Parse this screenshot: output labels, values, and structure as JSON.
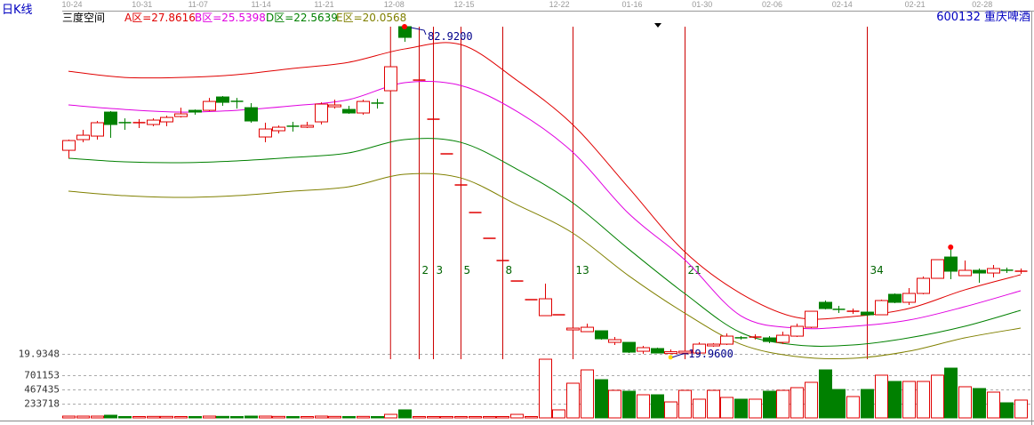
{
  "header": {
    "period_label": "日K线",
    "indicator_name": "三度空间",
    "zone_a": "A区=27.8616",
    "zone_b": "B区=25.5398",
    "zone_d": "D区=22.5639",
    "zone_e": "E区=20.0568",
    "stock": "600132  重庆啤酒"
  },
  "colors": {
    "up": "#e00000",
    "down": "#008000",
    "zone_a": "#e00000",
    "zone_b": "#e000e0",
    "zone_d": "#008000",
    "zone_e": "#808000",
    "fib_line": "#cc0000",
    "label_blue": "#00008b",
    "header_blue": "#0000c0"
  },
  "chart_data": {
    "type": "candlestick",
    "date_ticks": [
      {
        "label": "10-24",
        "index": 0
      },
      {
        "label": "10-31",
        "index": 5
      },
      {
        "label": "11-07",
        "index": 9
      },
      {
        "label": "11-14",
        "index": 13.5
      },
      {
        "label": "11-21",
        "index": 18
      },
      {
        "label": "12-08",
        "index": 23
      },
      {
        "label": "12-15",
        "index": 28
      },
      {
        "label": "12-22",
        "index": 34.8
      },
      {
        "label": "01-16",
        "index": 40
      },
      {
        "label": "01-30",
        "index": 45
      },
      {
        "label": "02-06",
        "index": 50
      },
      {
        "label": "02-14",
        "index": 55
      },
      {
        "label": "02-21",
        "index": 60.2
      },
      {
        "label": "02-28",
        "index": 65
      }
    ],
    "price_axis_label": "19.9348",
    "price_floor": 19.9348,
    "high_marker": {
      "index": 24,
      "label": "82.9200",
      "value": 82.92
    },
    "low_marker": {
      "index": 43,
      "label": "19.9600",
      "value": 19.96
    },
    "ohlc": [
      [
        59.12,
        61.0,
        61.18,
        57.58
      ],
      [
        61.18,
        62.03,
        63.06,
        60.66
      ],
      [
        61.86,
        64.43,
        64.77,
        61.18
      ],
      [
        66.48,
        64.09,
        66.65,
        61.52
      ],
      [
        64.45,
        64.4,
        65.28,
        63.06
      ],
      [
        64.4,
        64.45,
        65.11,
        63.4
      ],
      [
        64.09,
        64.94,
        65.28,
        63.74
      ],
      [
        64.6,
        65.45,
        65.79,
        63.74
      ],
      [
        65.62,
        66.14,
        67.33,
        65.45
      ],
      [
        66.82,
        66.48,
        66.99,
        65.97
      ],
      [
        66.82,
        68.53,
        69.21,
        66.65
      ],
      [
        69.39,
        68.36,
        69.56,
        67.68
      ],
      [
        68.55,
        68.5,
        69.21,
        67.16
      ],
      [
        67.33,
        64.77,
        68.19,
        64.43
      ],
      [
        61.69,
        63.23,
        64.43,
        60.66
      ],
      [
        62.89,
        63.57,
        63.91,
        62.37
      ],
      [
        63.76,
        63.72,
        64.6,
        62.72
      ],
      [
        63.57,
        63.91,
        64.6,
        63.4
      ],
      [
        64.6,
        68.02,
        68.36,
        64.09
      ],
      [
        67.5,
        67.85,
        68.87,
        67.16
      ],
      [
        66.99,
        66.31,
        67.68,
        66.14
      ],
      [
        66.31,
        68.53,
        68.87,
        65.97
      ],
      [
        68.21,
        68.17,
        69.04,
        67.16
      ],
      [
        70.59,
        75.21,
        75.21,
        70.59
      ],
      [
        82.92,
        80.86,
        82.92,
        80.0
      ],
      [
        72.64,
        72.64,
        72.64,
        72.64
      ],
      [
        65.11,
        65.11,
        65.11,
        65.11
      ],
      [
        58.44,
        58.44,
        58.44,
        58.44
      ],
      [
        52.45,
        52.45,
        52.45,
        52.45
      ],
      [
        47.14,
        47.14,
        47.14,
        47.14
      ],
      [
        42.18,
        42.18,
        42.18,
        42.18
      ],
      [
        37.9,
        37.9,
        37.9,
        37.9
      ],
      [
        33.96,
        33.96,
        33.96,
        33.96
      ],
      [
        30.37,
        30.37,
        30.37,
        30.37
      ],
      [
        27.29,
        30.54,
        33.45,
        27.29
      ],
      [
        27.46,
        27.46,
        27.46,
        27.46
      ],
      [
        24.55,
        24.89,
        24.89,
        24.55
      ],
      [
        24.21,
        25.06,
        25.75,
        24.21
      ],
      [
        24.38,
        22.84,
        24.38,
        22.67
      ],
      [
        22.15,
        22.67,
        23.18,
        21.64
      ],
      [
        22.15,
        20.27,
        22.15,
        20.1
      ],
      [
        20.44,
        21.13,
        21.47,
        19.96
      ],
      [
        20.96,
        20.1,
        21.13,
        20.05
      ],
      [
        20.0,
        20.35,
        20.8,
        19.96
      ],
      [
        20.1,
        20.44,
        20.7,
        20.05
      ],
      [
        20.1,
        21.81,
        22.15,
        20.1
      ],
      [
        21.47,
        21.81,
        22.0,
        21.3
      ],
      [
        21.81,
        23.35,
        23.87,
        21.64
      ],
      [
        23.03,
        23.01,
        23.35,
        22.67
      ],
      [
        23.16,
        23.18,
        23.7,
        22.7
      ],
      [
        23.01,
        22.33,
        23.35,
        21.98
      ],
      [
        22.15,
        23.52,
        24.21,
        21.81
      ],
      [
        23.35,
        25.24,
        25.75,
        23.18
      ],
      [
        25.06,
        28.14,
        28.14,
        24.89
      ],
      [
        29.86,
        28.66,
        30.2,
        28.49
      ],
      [
        28.51,
        28.49,
        29.17,
        27.8
      ],
      [
        28.12,
        28.14,
        28.66,
        27.63
      ],
      [
        27.97,
        27.46,
        28.14,
        27.12
      ],
      [
        27.46,
        30.2,
        30.37,
        27.46
      ],
      [
        31.4,
        29.86,
        31.57,
        29.69
      ],
      [
        29.86,
        31.57,
        32.59,
        29.34
      ],
      [
        31.57,
        34.48,
        34.82,
        31.4
      ],
      [
        34.48,
        38.07,
        38.07,
        34.48
      ],
      [
        38.58,
        35.85,
        39.95,
        34.31
      ],
      [
        34.99,
        36.02,
        37.9,
        34.99
      ],
      [
        36.02,
        35.5,
        36.36,
        33.62
      ],
      [
        35.5,
        36.36,
        37.04,
        34.65
      ],
      [
        36.04,
        36.02,
        36.53,
        35.5
      ],
      [
        35.83,
        35.85,
        36.36,
        35.33
      ]
    ],
    "volume_axis_labels": [
      "701153",
      "467435",
      "233718"
    ],
    "volume_axis_values": [
      701153,
      467435,
      233718
    ],
    "volume": [
      30000,
      30000,
      30000,
      45000,
      15000,
      20000,
      25000,
      25000,
      20000,
      20000,
      30000,
      25000,
      15000,
      30000,
      30000,
      25000,
      15000,
      20000,
      30000,
      25000,
      20000,
      25000,
      15000,
      60000,
      136000,
      5000,
      5000,
      5000,
      5000,
      10000,
      10000,
      12000,
      60000,
      15000,
      995000,
      136000,
      588000,
      814000,
      648000,
      467000,
      452000,
      392000,
      392000,
      271000,
      467000,
      317000,
      467000,
      347000,
      317000,
      317000,
      452000,
      467000,
      513000,
      603000,
      814000,
      482000,
      362000,
      482000,
      724000,
      618000,
      618000,
      618000,
      724000,
      844000,
      528000,
      498000,
      437000,
      256000,
      302000
    ],
    "bands": {
      "sample_indices": [
        0,
        4,
        8,
        12,
        16,
        20,
        24,
        28,
        32,
        36,
        40,
        44,
        48,
        52,
        56,
        60,
        64,
        68
      ],
      "A": [
        74.35,
        73.15,
        73.15,
        73.67,
        74.87,
        76.06,
        78.63,
        79.49,
        72.64,
        64.09,
        51.93,
        39.61,
        31.57,
        26.95,
        27.12,
        28.66,
        32.25,
        35.16
      ],
      "B": [
        67.85,
        66.99,
        66.48,
        66.82,
        67.68,
        68.87,
        72.13,
        71.61,
        66.65,
        58.78,
        46.97,
        38.07,
        27.29,
        24.89,
        25.24,
        26.43,
        29.0,
        32.08
      ],
      "D": [
        57.58,
        56.9,
        56.73,
        57.07,
        57.75,
        58.61,
        61.18,
        60.66,
        55.53,
        49.03,
        40.12,
        31.57,
        24.04,
        21.64,
        21.64,
        23.01,
        25.24,
        28.32
      ],
      "E": [
        51.25,
        50.39,
        50.05,
        50.39,
        51.25,
        52.1,
        54.5,
        53.81,
        48.68,
        43.21,
        34.99,
        27.8,
        21.81,
        19.42,
        19.08,
        20.44,
        23.01,
        24.89
      ]
    },
    "fibonacci": {
      "start_index": 23,
      "labels": [
        "2",
        "3",
        "5",
        "8",
        "13",
        "21",
        "34"
      ],
      "offsets": [
        2,
        3,
        5,
        8,
        13,
        21,
        34
      ]
    },
    "grid": false
  }
}
